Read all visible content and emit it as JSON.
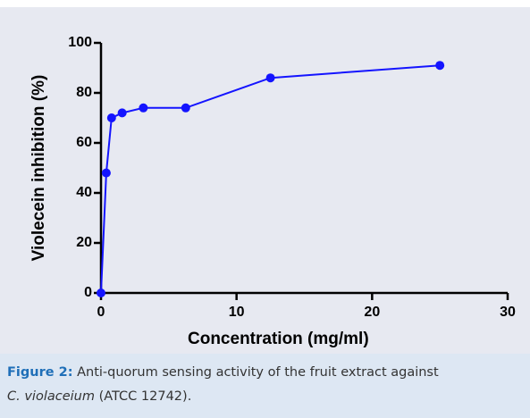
{
  "chart_data": {
    "type": "line",
    "x_label": "Concentration (mg/ml)",
    "y_label": "Violecein inhibition (%)",
    "x": [
      0,
      0.39,
      0.78,
      1.56,
      3.125,
      6.25,
      12.5,
      25
    ],
    "series": [
      {
        "color": "#1414ff",
        "values": [
          0,
          48,
          70,
          72,
          74,
          74,
          86,
          91
        ]
      }
    ],
    "xlim": [
      0,
      30
    ],
    "xticks": [
      0,
      10,
      20,
      30
    ],
    "ylim": [
      0,
      100
    ],
    "yticks": [
      0,
      20,
      40,
      60,
      80,
      100
    ]
  },
  "caption": {
    "label": "Figure 2:",
    "text": " Anti-quorum sensing activity of the fruit extract against",
    "species": "C. violaceium",
    "rest": " (ATCC 12742)."
  }
}
